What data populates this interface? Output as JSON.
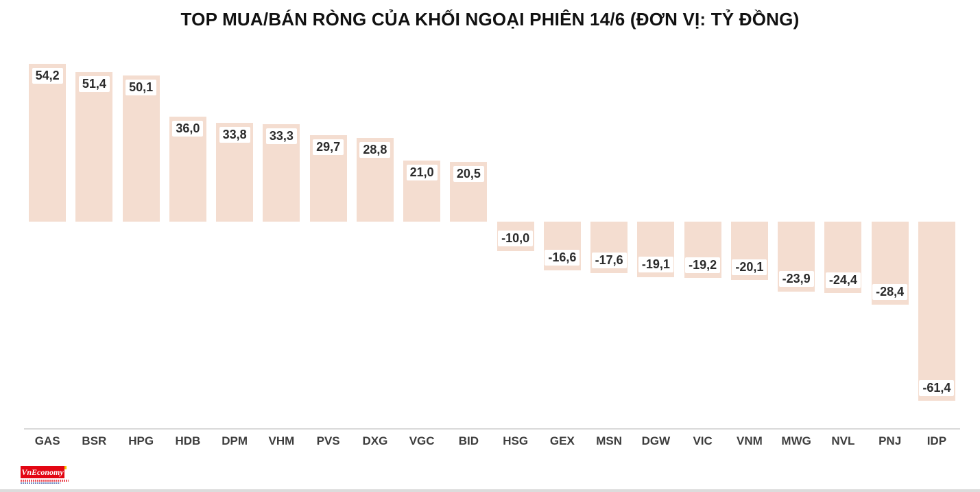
{
  "title": "TOP MUA/BÁN RÒNG CỦA KHỐI NGOẠI PHIÊN 14/6 (ĐƠN VỊ: TỶ ĐỒNG)",
  "logo": {
    "text": "VnEconomy"
  },
  "colors": {
    "bar": "#f4ddd0",
    "value_text": "#2b2b2b",
    "axis": "#d9d9d9",
    "logo_bg": "#e30613"
  },
  "chart_data": {
    "type": "bar",
    "title": "TOP MUA/BÁN RÒNG CỦA KHỐI NGOẠI PHIÊN 14/6 (ĐƠN VỊ: TỶ ĐỒNG)",
    "unit": "tỷ đồng",
    "xlabel": "",
    "ylabel": "",
    "grid": false,
    "legend": false,
    "ylim": [
      -65,
      60
    ],
    "categories": [
      "GAS",
      "BSR",
      "HPG",
      "HDB",
      "DPM",
      "VHM",
      "PVS",
      "DXG",
      "VGC",
      "BID",
      "HSG",
      "GEX",
      "MSN",
      "DGW",
      "VIC",
      "VNM",
      "MWG",
      "NVL",
      "PNJ",
      "IDP"
    ],
    "values": [
      54.2,
      51.4,
      50.1,
      36.0,
      33.8,
      33.3,
      29.7,
      28.8,
      21.0,
      20.5,
      -10.0,
      -16.6,
      -17.6,
      -19.1,
      -19.2,
      -20.1,
      -23.9,
      -24.4,
      -28.4,
      -61.4
    ],
    "value_labels": [
      "54,2",
      "51,4",
      "50,1",
      "36,0",
      "33,8",
      "33,3",
      "29,7",
      "28,8",
      "21,0",
      "20,5",
      "-10,0",
      "-16,6",
      "-17,6",
      "-19,1",
      "-19,2",
      "-20,1",
      "-23,9",
      "-24,4",
      "-28,4",
      "-61,4"
    ]
  }
}
